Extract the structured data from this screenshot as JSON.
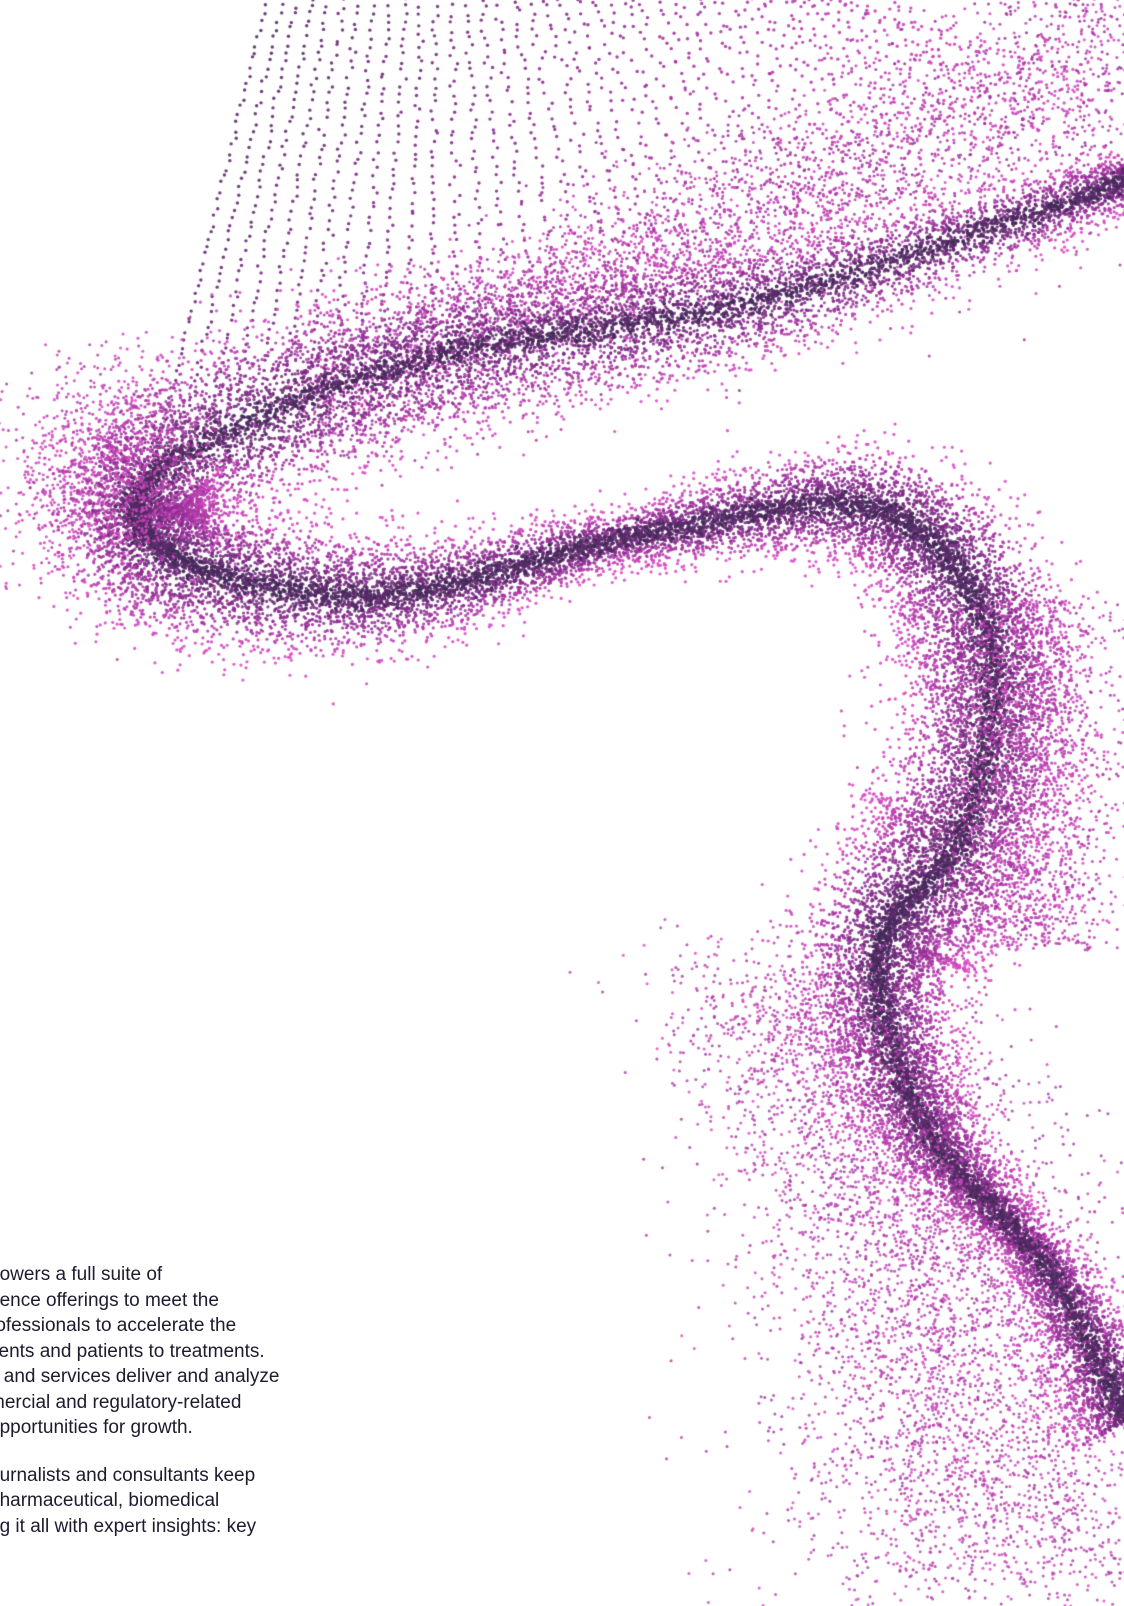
{
  "decoration": {
    "icon": "particle-wave-illustration",
    "colors": {
      "dark": "#3b2a52",
      "mid": "#8a2c8f",
      "pink": "#d84bc4"
    }
  },
  "body_text": {
    "paragraph_1_lines": [
      "powers a full suite of",
      "gence offerings to meet the",
      "rofessionals to accelerate the",
      "tients and patients to treatments.",
      "s and services deliver and analyze",
      "mercial and regulatory-related",
      " opportunities for growth."
    ],
    "paragraph_2_lines": [
      "ournalists and consultants keep",
      " pharmaceutical, biomedical",
      "ng it all with expert insights: key"
    ]
  }
}
